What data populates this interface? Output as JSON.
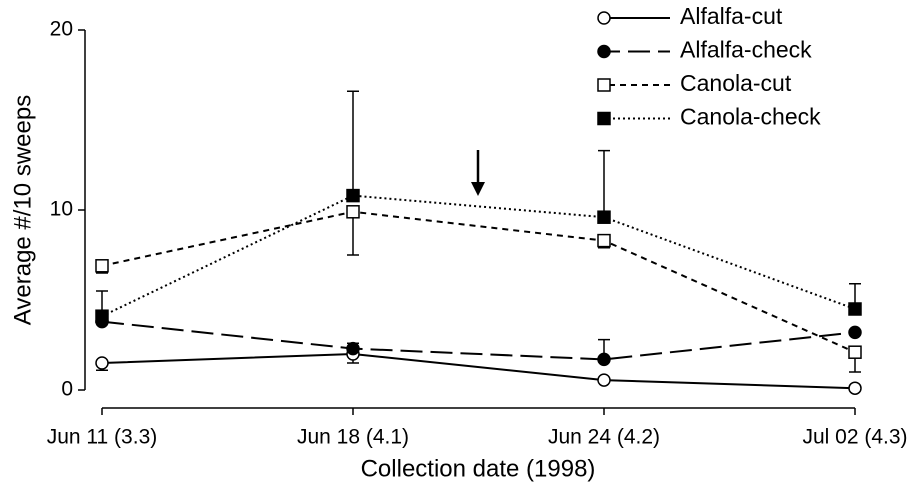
{
  "chart_data": {
    "type": "line",
    "x_label": "Collection date (1998)",
    "y_label": "Average #/10 sweeps",
    "categories": [
      "Jun 11 (3.3)",
      "Jun 18 (4.1)",
      "Jun 24 (4.2)",
      "Jul 02 (4.3)"
    ],
    "ylim": [
      0,
      20
    ],
    "yticks": [
      0,
      10,
      20
    ],
    "legend": "top-right",
    "series": [
      {
        "name": "Alfalfa-cut",
        "color": "#000000",
        "marker": "circle",
        "filled": false,
        "dash": "solid",
        "error_side": "down",
        "values": [
          1.5,
          2.0,
          0.55,
          0.1
        ],
        "errors": [
          0.4,
          0.5,
          null,
          null
        ]
      },
      {
        "name": "Alfalfa-check",
        "color": "#000000",
        "marker": "circle",
        "filled": true,
        "dash": "long",
        "error_side": "up",
        "values": [
          3.8,
          2.3,
          1.7,
          3.2
        ],
        "errors": [
          null,
          0.3,
          1.1,
          null
        ]
      },
      {
        "name": "Canola-cut",
        "color": "#000000",
        "marker": "square",
        "filled": false,
        "dash": "short",
        "error_side": "down",
        "values": [
          6.9,
          9.9,
          8.3,
          2.1
        ],
        "errors": [
          0.4,
          2.4,
          0.4,
          1.1
        ]
      },
      {
        "name": "Canola-check",
        "color": "#000000",
        "marker": "square",
        "filled": true,
        "dash": "dotted",
        "error_side": "up",
        "values": [
          4.1,
          10.8,
          9.6,
          4.5
        ],
        "errors": [
          1.4,
          5.8,
          3.7,
          1.4
        ]
      }
    ]
  }
}
